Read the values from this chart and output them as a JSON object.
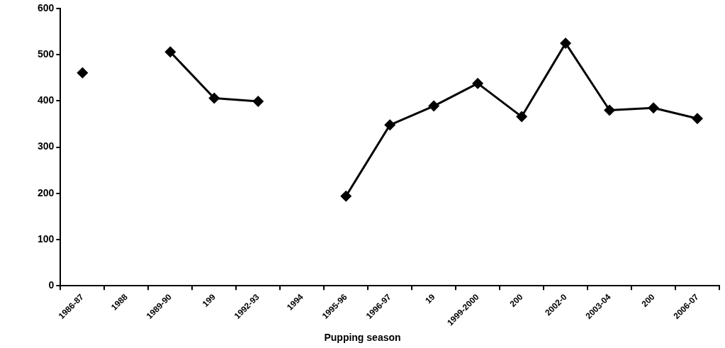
{
  "chart_data": {
    "type": "line",
    "xlabel": "Pupping season",
    "categories": [
      "1986-87",
      "1988",
      "1989-90",
      "199",
      "1992-93",
      "1994",
      "1995-96",
      "1996-97",
      "19",
      "1999-2000",
      "200",
      "2002-0",
      "2003-04",
      "200",
      "2006-07"
    ],
    "series": [
      {
        "color": "#000000",
        "values": [
          461,
          null,
          506,
          406,
          399,
          null,
          194,
          348,
          389,
          438,
          366,
          525,
          380,
          385,
          362
        ]
      }
    ],
    "ylim": [
      0,
      600
    ],
    "yticks": [
      0,
      100,
      200,
      300,
      400,
      500,
      600
    ],
    "grid": false,
    "legend": false,
    "marker": "diamond",
    "line_style": "solid"
  }
}
